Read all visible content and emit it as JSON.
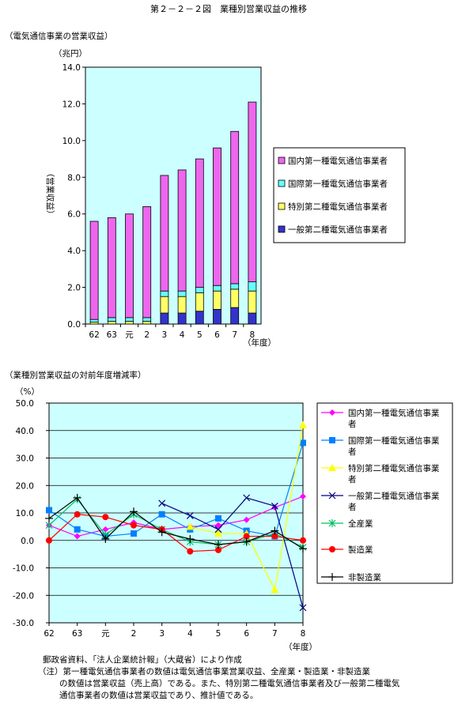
{
  "title": "第２－２－２図　業種別営業収益の推移",
  "chart_data": [
    {
      "type": "bar",
      "stacked": true,
      "subtitle": "（電気通信事業の営業収益）",
      "yunit": "（兆円）",
      "ylabel": "（営業収益）",
      "xunit": "（年度）",
      "categories": [
        "62",
        "63",
        "元",
        "2",
        "3",
        "4",
        "5",
        "6",
        "7",
        "8"
      ],
      "ylim": [
        0,
        14
      ],
      "yticks": [
        "0.0",
        "2.0",
        "4.0",
        "6.0",
        "8.0",
        "10.0",
        "12.0",
        "14.0"
      ],
      "grid": false,
      "legend_position": "right",
      "series": [
        {
          "name": "一般第二種電気通信事業者",
          "color": "#3333cc",
          "values": [
            0,
            0,
            0,
            0,
            0.6,
            0.6,
            0.7,
            0.8,
            0.9,
            0.6
          ]
        },
        {
          "name": "特別第二種電気通信事業者",
          "color": "#ffff66",
          "values": [
            0.1,
            0.15,
            0.15,
            0.15,
            0.9,
            0.9,
            1.0,
            1.0,
            1.0,
            1.2
          ]
        },
        {
          "name": "国際第一種電気通信事業者",
          "color": "#66ffff",
          "values": [
            0.15,
            0.2,
            0.2,
            0.2,
            0.3,
            0.3,
            0.3,
            0.3,
            0.3,
            0.5
          ]
        },
        {
          "name": "国内第一種電気通信事業者",
          "color": "#ee66ee",
          "values": [
            5.35,
            5.45,
            5.65,
            6.05,
            6.3,
            6.6,
            7.0,
            7.5,
            8.3,
            9.8
          ]
        }
      ]
    },
    {
      "type": "line",
      "subtitle": "（業種別営業収益の対前年度増減率）",
      "yunit": "（%）",
      "xunit": "（年度）",
      "categories": [
        "62",
        "63",
        "元",
        "2",
        "3",
        "4",
        "5",
        "6",
        "7",
        "8"
      ],
      "ylim": [
        -30,
        50
      ],
      "yticks": [
        "50.0",
        "40.0",
        "30.0",
        "20.0",
        "10.0",
        "0.0",
        "-10.0",
        "-20.0",
        "-30.0"
      ],
      "grid": true,
      "legend_position": "right",
      "series": [
        {
          "name": "国内第一種電気通信事業者",
          "color": "#ff00ff",
          "marker": "diamond",
          "values": [
            5.5,
            1.5,
            4.0,
            6.5,
            4.0,
            5.0,
            5.5,
            7.5,
            12.0,
            16.0
          ]
        },
        {
          "name": "国際第一種電気通信事業者",
          "color": "#0080ff",
          "marker": "square",
          "values": [
            11.0,
            4.0,
            1.5,
            2.5,
            9.5,
            4.0,
            8.0,
            3.5,
            1.5,
            35.5
          ]
        },
        {
          "name": "特別第二種電気通信事業者",
          "color": "#ffff00",
          "marker": "triangle",
          "values": [
            null,
            null,
            null,
            null,
            null,
            5.0,
            2.5,
            2.5,
            -18.0,
            42.0
          ]
        },
        {
          "name": "一般第二種電気通信事業者",
          "color": "#000080",
          "marker": "x",
          "values": [
            null,
            null,
            null,
            null,
            13.5,
            9.0,
            4.0,
            15.5,
            12.5,
            -24.5
          ]
        },
        {
          "name": "全産業",
          "color": "#00c060",
          "marker": "asterisk",
          "values": [
            5.5,
            15.0,
            2.0,
            9.5,
            4.0,
            -0.5,
            -1.5,
            -0.5,
            2.5,
            -2.5
          ]
        },
        {
          "name": "製造業",
          "color": "#ff0000",
          "marker": "circle",
          "values": [
            0.0,
            9.5,
            8.5,
            5.5,
            4.0,
            -4.0,
            -3.5,
            1.5,
            1.5,
            0.0
          ]
        },
        {
          "name": "非製造業",
          "color": "#000000",
          "marker": "plus",
          "values": [
            8.0,
            15.5,
            0.5,
            10.5,
            3.0,
            0.5,
            -1.5,
            -0.5,
            3.5,
            -3.0
          ]
        }
      ]
    }
  ],
  "notes": {
    "source": "郵政省資料、「法人企業統計報」（大蔵省）により作成",
    "note_line1": "（注）第一種電気通信事業者の数値は電気通信事業営業収益、全産業・製造業・非製造業",
    "note_line2": "の数値は営業収益（売上高）である。また、特別第二種電気通信事業者及び一般第二種電気",
    "note_line3": "通信事業者の数値は営業収益であり、推計値である。"
  }
}
